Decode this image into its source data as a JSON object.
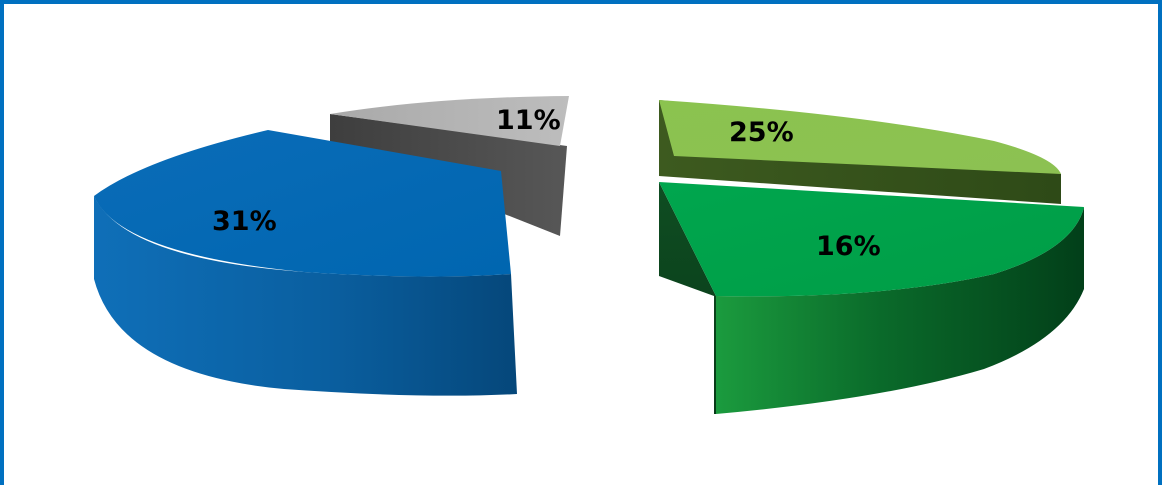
{
  "chart_data": {
    "type": "pie",
    "style": "3d-exploded",
    "slices": [
      {
        "label": "31%",
        "value": 31,
        "color": "#0068b3"
      },
      {
        "label": "11%",
        "value": 11,
        "color": "#b2b2b2"
      },
      {
        "label": "25%",
        "value": 25,
        "color": "#8cc152"
      },
      {
        "label": "16%",
        "value": 16,
        "color": "#00a14b"
      }
    ],
    "legend": "none",
    "grid": false,
    "border_color": "#0070c0"
  }
}
